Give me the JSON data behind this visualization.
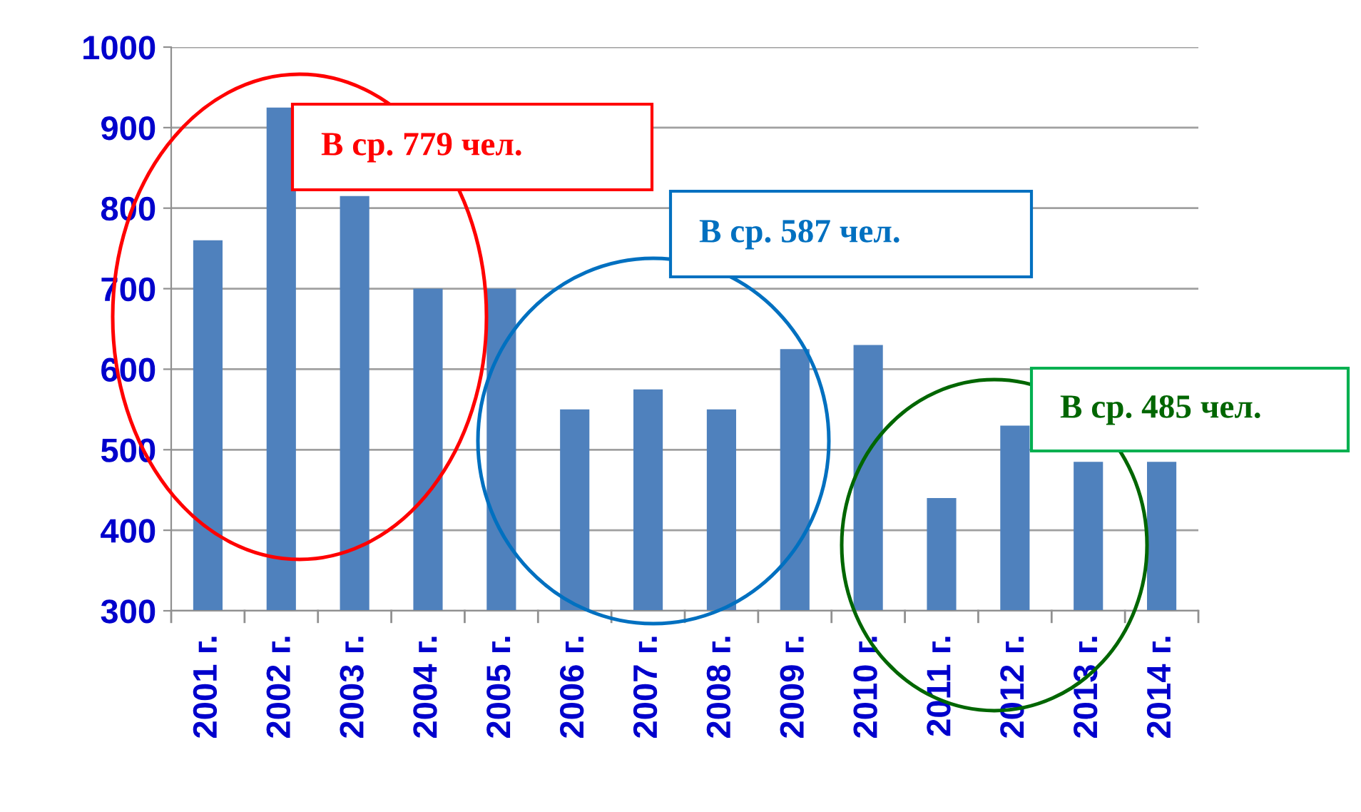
{
  "chart_data": {
    "type": "bar",
    "categories": [
      "2001 г.",
      "2002 г.",
      "2003 г.",
      "2004 г.",
      "2005 г.",
      "2006 г.",
      "2007 г.",
      "2008 г.",
      "2009 г.",
      "2010 г.",
      "2011 г.",
      "2012 г.",
      "2013 г.",
      "2014 г."
    ],
    "values": [
      760,
      925,
      815,
      700,
      700,
      550,
      575,
      550,
      625,
      630,
      440,
      530,
      485,
      485
    ],
    "color": "#4f81bd",
    "ylim": [
      300,
      1000
    ],
    "yticks": [
      300,
      400,
      500,
      600,
      700,
      800,
      900,
      1000
    ],
    "grid": "y",
    "annotations": [
      "В ср. 779 чел.",
      "В ср. 587 чел.",
      "В ср. 485 чел."
    ]
  }
}
